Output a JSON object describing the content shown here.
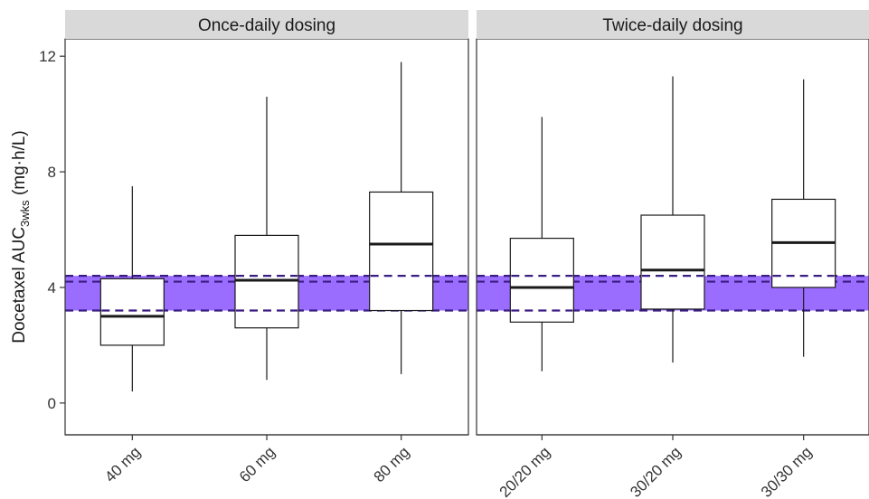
{
  "chart_data": {
    "type": "boxplot",
    "ylabel": {
      "main": "Docetaxel AUC",
      "subscript": "3wks",
      "unit": " (mg·h/L)"
    },
    "ylim": [
      -1.1,
      12.6
    ],
    "yticks": [
      0,
      4,
      8,
      12
    ],
    "grid": false,
    "reference_band": {
      "ymin": 3.2,
      "ymax": 4.4,
      "color": "#9b6dff"
    },
    "reference_lines": [
      3.2,
      4.2,
      4.4
    ],
    "colors": {
      "band": "#9b6dff",
      "line": "#3a1c82",
      "box": "#1a1a1a",
      "strip": "#d9d9d9"
    },
    "panels": [
      {
        "title": "Once-daily dosing",
        "categories": [
          "40 mg",
          "60 mg",
          "80 mg"
        ],
        "boxes": [
          {
            "whisker_low": 0.4,
            "q1": 2.0,
            "median": 3.0,
            "q3": 4.3,
            "whisker_high": 7.5
          },
          {
            "whisker_low": 0.8,
            "q1": 2.6,
            "median": 4.25,
            "q3": 5.8,
            "whisker_high": 10.6
          },
          {
            "whisker_low": 1.0,
            "q1": 3.2,
            "median": 5.5,
            "q3": 7.3,
            "whisker_high": 11.8
          }
        ]
      },
      {
        "title": "Twice-daily dosing",
        "categories": [
          "20/20 mg",
          "30/20 mg",
          "30/30 mg"
        ],
        "boxes": [
          {
            "whisker_low": 1.1,
            "q1": 2.8,
            "median": 4.0,
            "q3": 5.7,
            "whisker_high": 9.9
          },
          {
            "whisker_low": 1.4,
            "q1": 3.25,
            "median": 4.6,
            "q3": 6.5,
            "whisker_high": 11.3
          },
          {
            "whisker_low": 1.6,
            "q1": 4.0,
            "median": 5.55,
            "q3": 7.05,
            "whisker_high": 11.2
          }
        ]
      }
    ]
  }
}
